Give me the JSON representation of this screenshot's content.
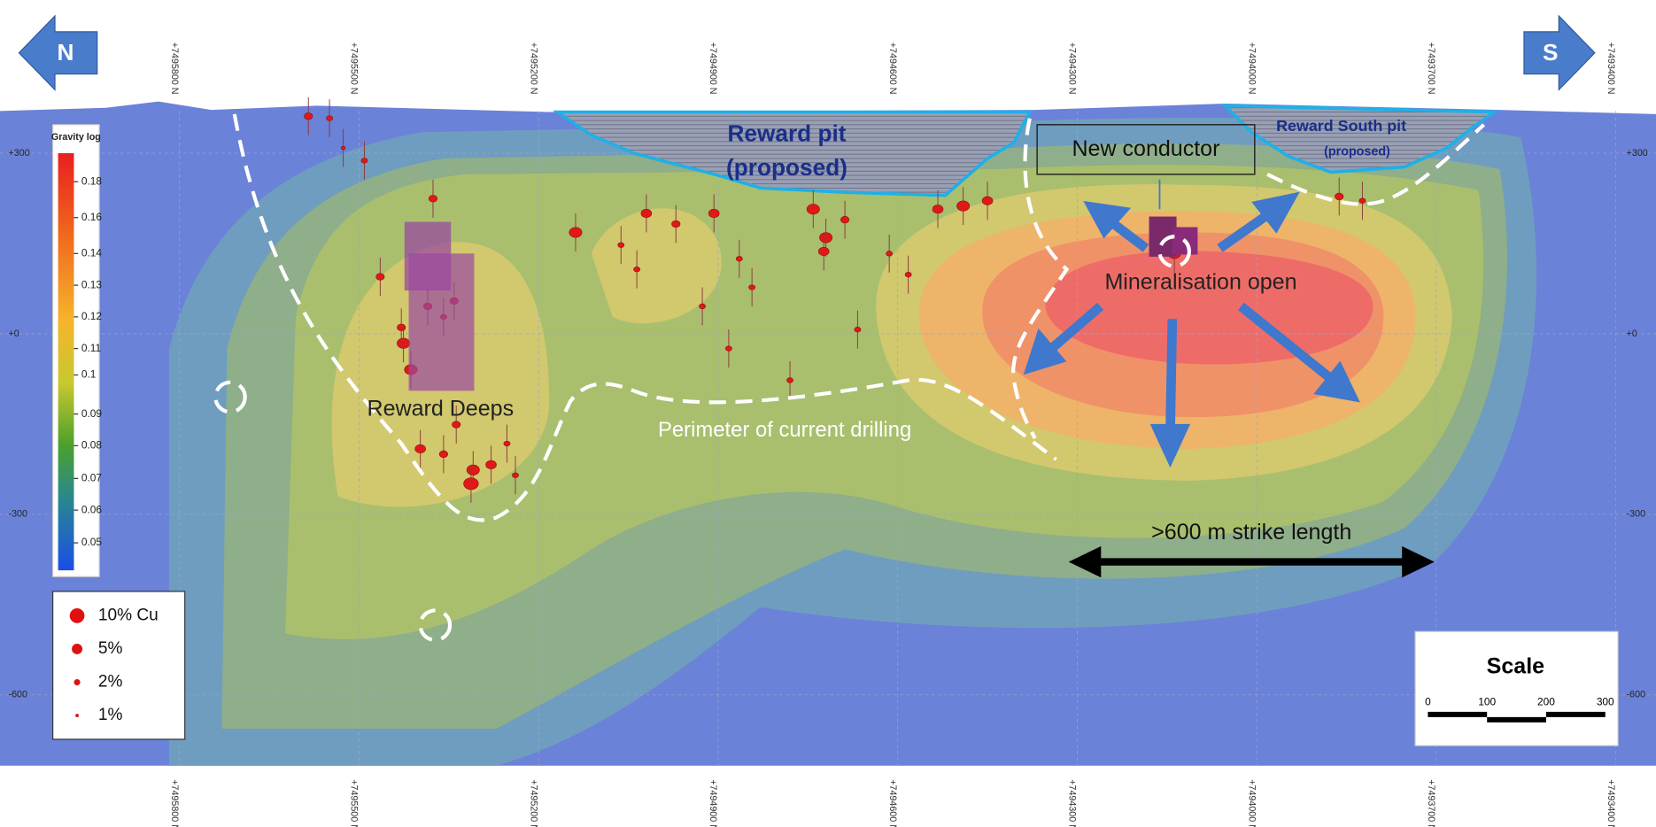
{
  "arrows": {
    "north": "N",
    "south": "S"
  },
  "northings": [
    "+7495800 N",
    "+7495500 N",
    "+7495200 N",
    "+7494900 N",
    "+7494600 N",
    "+7494300 N",
    "+7494000 N",
    "+7493700 N",
    "+7493400 N"
  ],
  "elevations": [
    "+300",
    "+0",
    "-300",
    "-600"
  ],
  "gravity_legend": {
    "title": "Gravity log",
    "labels": [
      "0.18",
      "0.16",
      "0.14",
      "0.13",
      "0.12",
      "0.11",
      "0.1",
      "0.09",
      "0.08",
      "0.07",
      "0.06",
      "0.05"
    ]
  },
  "cu_legend": {
    "labels": [
      "10% Cu",
      "5%",
      "2%",
      "1%"
    ]
  },
  "annotations": {
    "reward_pit": "Reward pit",
    "reward_pit_note": "(proposed)",
    "reward_south_pit": "Reward South pit",
    "reward_south_pit_note": "(proposed)",
    "new_conductor": "New conductor",
    "mineralisation": "Mineralisation open",
    "reward_deeps": "Reward Deeps",
    "perimeter": "Perimeter of current drilling",
    "strike": ">600 m strike length"
  },
  "scale": {
    "title": "Scale",
    "ticks": [
      "0",
      "100",
      "200",
      "300"
    ]
  }
}
